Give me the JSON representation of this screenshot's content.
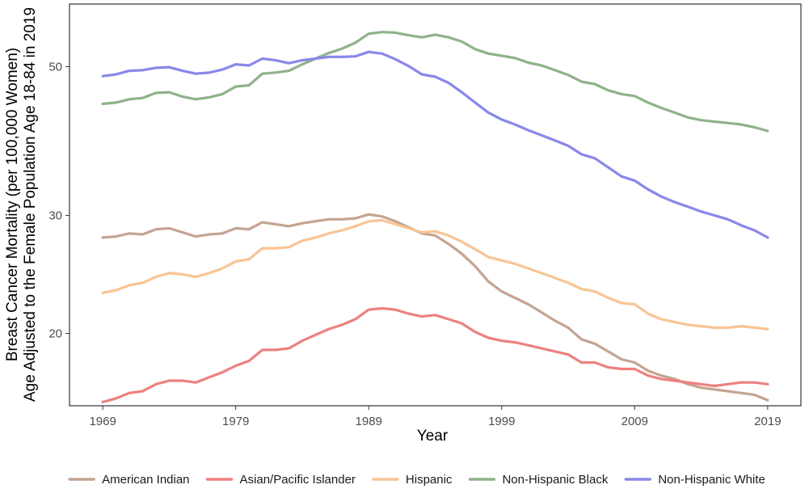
{
  "chart_data": {
    "type": "line",
    "xlabel": "Year",
    "ylabel_line1": "Breast Cancer Mortality (per 100,000 Women)",
    "ylabel_line2": "Age Adjusted to the Female Population Age 18-84 in 2019",
    "y_scale": "log",
    "xlim": [
      1966.5,
      2021.5
    ],
    "ylim": [
      15.6,
      62.0
    ],
    "x_ticks": [
      1969,
      1979,
      1989,
      1999,
      2009,
      2019
    ],
    "y_ticks": [
      20,
      30,
      50
    ],
    "grid": false,
    "legend_position": "bottom",
    "x": [
      1969,
      1970,
      1971,
      1972,
      1973,
      1974,
      1975,
      1976,
      1977,
      1978,
      1979,
      1980,
      1981,
      1982,
      1983,
      1984,
      1985,
      1986,
      1987,
      1988,
      1989,
      1990,
      1991,
      1992,
      1993,
      1994,
      1995,
      1996,
      1997,
      1998,
      1999,
      2000,
      2001,
      2002,
      2003,
      2004,
      2005,
      2006,
      2007,
      2008,
      2009,
      2010,
      2011,
      2012,
      2013,
      2014,
      2015,
      2016,
      2017,
      2018,
      2019
    ],
    "series": [
      {
        "name": "American Indian",
        "color": "#c4a491",
        "values": [
          27.8,
          27.9,
          28.2,
          28.1,
          28.6,
          28.7,
          28.3,
          27.9,
          28.1,
          28.2,
          28.7,
          28.6,
          29.3,
          29.1,
          28.9,
          29.2,
          29.4,
          29.6,
          29.6,
          29.7,
          30.1,
          29.9,
          29.4,
          28.8,
          28.2,
          28.0,
          27.2,
          26.3,
          25.2,
          23.9,
          23.1,
          22.6,
          22.1,
          21.5,
          20.9,
          20.4,
          19.6,
          19.3,
          18.8,
          18.3,
          18.1,
          17.6,
          17.3,
          17.1,
          16.8,
          16.6,
          16.5,
          16.4,
          16.3,
          16.2,
          15.9
        ]
      },
      {
        "name": "Asian/Pacific Islander",
        "color": "#ee8080",
        "values": [
          15.8,
          16.0,
          16.3,
          16.4,
          16.8,
          17.0,
          17.0,
          16.9,
          17.2,
          17.5,
          17.9,
          18.2,
          18.9,
          18.9,
          19.0,
          19.5,
          19.9,
          20.3,
          20.6,
          21.0,
          21.7,
          21.8,
          21.7,
          21.4,
          21.2,
          21.3,
          21.0,
          20.7,
          20.1,
          19.7,
          19.5,
          19.4,
          19.2,
          19.0,
          18.8,
          18.6,
          18.1,
          18.1,
          17.8,
          17.7,
          17.7,
          17.3,
          17.1,
          17.0,
          16.9,
          16.8,
          16.7,
          16.8,
          16.9,
          16.9,
          16.8
        ]
      },
      {
        "name": "Hispanic",
        "color": "#f8c494",
        "values": [
          23.0,
          23.2,
          23.6,
          23.8,
          24.3,
          24.6,
          24.5,
          24.3,
          24.6,
          25.0,
          25.6,
          25.8,
          26.8,
          26.8,
          26.9,
          27.5,
          27.8,
          28.2,
          28.5,
          28.9,
          29.4,
          29.5,
          29.1,
          28.7,
          28.3,
          28.4,
          28.0,
          27.4,
          26.7,
          26.0,
          25.7,
          25.4,
          25.0,
          24.6,
          24.2,
          23.8,
          23.3,
          23.1,
          22.6,
          22.2,
          22.1,
          21.4,
          21.0,
          20.8,
          20.6,
          20.5,
          20.4,
          20.4,
          20.5,
          20.4,
          20.3
        ]
      },
      {
        "name": "Non-Hispanic Black",
        "color": "#8fb28a",
        "values": [
          44.0,
          44.2,
          44.7,
          44.9,
          45.7,
          45.8,
          45.1,
          44.7,
          45.0,
          45.5,
          46.7,
          46.9,
          48.8,
          49.0,
          49.3,
          50.4,
          51.4,
          52.4,
          53.2,
          54.3,
          56.0,
          56.3,
          56.2,
          55.7,
          55.3,
          55.8,
          55.3,
          54.5,
          53.1,
          52.3,
          51.9,
          51.5,
          50.7,
          50.2,
          49.4,
          48.6,
          47.5,
          47.1,
          46.1,
          45.5,
          45.2,
          44.2,
          43.4,
          42.7,
          42.0,
          41.6,
          41.4,
          41.2,
          41.0,
          40.6,
          40.1
        ]
      },
      {
        "name": "Non-Hispanic White",
        "color": "#8888ea",
        "values": [
          48.4,
          48.7,
          49.3,
          49.4,
          49.8,
          49.9,
          49.3,
          48.8,
          49.0,
          49.5,
          50.4,
          50.2,
          51.4,
          51.1,
          50.6,
          51.1,
          51.4,
          51.7,
          51.7,
          51.8,
          52.6,
          52.3,
          51.3,
          50.1,
          48.7,
          48.3,
          47.3,
          45.8,
          44.2,
          42.7,
          41.7,
          41.0,
          40.2,
          39.5,
          38.8,
          38.1,
          37.0,
          36.5,
          35.4,
          34.3,
          33.8,
          32.8,
          32.0,
          31.4,
          30.9,
          30.4,
          30.0,
          29.6,
          29.0,
          28.5,
          27.8
        ]
      }
    ]
  }
}
